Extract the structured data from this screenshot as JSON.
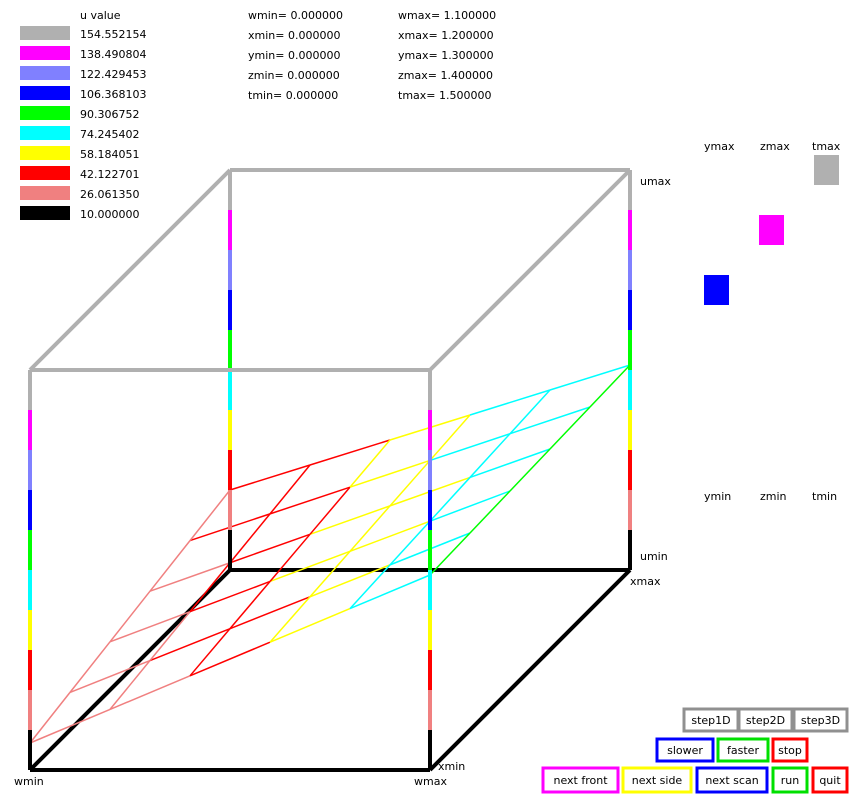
{
  "legend": {
    "title": "u value",
    "items": [
      {
        "color": "#b0b0b0",
        "label": "154.552154"
      },
      {
        "color": "#ff00ff",
        "label": "138.490804"
      },
      {
        "color": "#8080ff",
        "label": "122.429453"
      },
      {
        "color": "#0000ff",
        "label": "106.368103"
      },
      {
        "color": "#00ff00",
        "label": "90.306752"
      },
      {
        "color": "#00ffff",
        "label": "74.245402"
      },
      {
        "color": "#ffff00",
        "label": "58.184051"
      },
      {
        "color": "#ff0000",
        "label": "42.122701"
      },
      {
        "color": "#f08080",
        "label": "26.061350"
      },
      {
        "color": "#000000",
        "label": "10.000000"
      }
    ]
  },
  "ranges": {
    "min": [
      "wmin=  0.000000",
      "xmin=  0.000000",
      "ymin=  0.000000",
      "zmin=  0.000000",
      "tmin=  0.000000"
    ],
    "max": [
      "wmax= 1.100000",
      "xmax= 1.200000",
      "ymax= 1.300000",
      "zmax= 1.400000",
      "tmax= 1.500000"
    ]
  },
  "axis_labels": {
    "umax": "umax",
    "umin": "umin",
    "xmax": "xmax",
    "xmin": "xmin",
    "wmin": "wmin",
    "wmax": "wmax"
  },
  "sliders": {
    "top": [
      "ymax",
      "zmax",
      "tmax"
    ],
    "bottom": [
      "ymin",
      "zmin",
      "tmin"
    ]
  },
  "buttons": {
    "step": [
      "step1D",
      "step2D",
      "step3D"
    ],
    "speed": [
      "slower",
      "faster",
      "stop"
    ],
    "nav": [
      "next front",
      "next side",
      "next scan",
      "run",
      "quit"
    ]
  }
}
